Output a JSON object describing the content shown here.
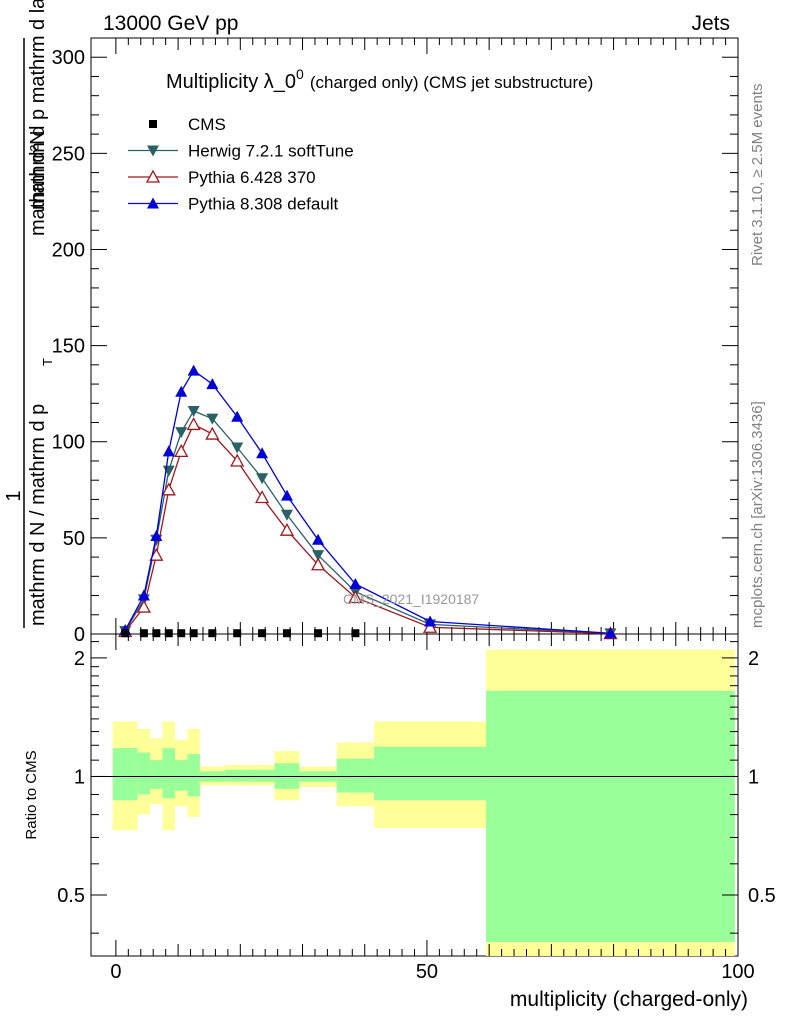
{
  "header": {
    "energy_label": "13000 GeV pp",
    "category_label": "Jets"
  },
  "side_labels": {
    "rivet": "Rivet 3.1.10, ≥ 2.5M events",
    "mcplots": "mcplots.cern.ch [arXiv:1306.3436]"
  },
  "chart_data": {
    "type": "line",
    "title_main": "Multiplicity λ_0",
    "title_sup": "0",
    "title_sub": "(charged only) (CMS jet substructure)",
    "watermark": "CMS_2021_I1920187",
    "ylabel_top": "1",
    "ylabel_denominator": "mathrm d N / mathrm d p",
    "ylabel_numerator": "mathrm d²N",
    "ylabel_num_rest": "mathrm d p  mathrm d lambda",
    "ylabel_sub": "T",
    "xlabel": "multiplicity (charged-only)",
    "ratio_ylabel": "Ratio to CMS",
    "xlim": [
      -4,
      100
    ],
    "ylim": [
      0,
      310
    ],
    "ratio_ylim": [
      0.35,
      2.3
    ],
    "x_ticks": [
      0,
      50,
      100
    ],
    "y_ticks": [
      0,
      50,
      100,
      150,
      200,
      250,
      300
    ],
    "ratio_ticks": [
      0.5,
      1,
      2
    ],
    "legend": [
      {
        "name": "CMS",
        "marker": "square-filled",
        "color": "#000000"
      },
      {
        "name": "Herwig 7.2.1 softTune",
        "marker": "triangle-down-filled",
        "color": "#2a6164"
      },
      {
        "name": "Pythia 6.428 370",
        "marker": "triangle-up-open",
        "color": "#a0161e"
      },
      {
        "name": "Pythia 8.308 default",
        "marker": "triangle-up-filled",
        "color": "#0000d8"
      }
    ],
    "cms": {
      "x": [
        1.5,
        4.5,
        6.5,
        8.5,
        10.5,
        12.5,
        15.5,
        19.5,
        23.5,
        27.5,
        32.5,
        38.5
      ],
      "y": [
        0.4,
        0.4,
        0.4,
        0.4,
        0.4,
        0.4,
        0.4,
        0.4,
        0.4,
        0.4,
        0.4,
        0.4
      ]
    },
    "series": [
      {
        "name": "Herwig 7.2.1 softTune",
        "x": [
          1.5,
          4.5,
          6.5,
          8.5,
          10.5,
          12.5,
          15.5,
          19.5,
          23.5,
          27.5,
          32.5,
          38.5,
          50.5,
          79.5
        ],
        "y": [
          1.5,
          18,
          49,
          85,
          105,
          116,
          112,
          97,
          81,
          62,
          41,
          22,
          5,
          0.3
        ]
      },
      {
        "name": "Pythia 6.428 370",
        "x": [
          1.5,
          4.5,
          6.5,
          8.5,
          10.5,
          12.5,
          15.5,
          19.5,
          23.5,
          27.5,
          32.5,
          38.5,
          50.5,
          79.5
        ],
        "y": [
          1.3,
          14,
          41,
          75,
          95,
          109,
          104,
          90,
          71,
          54,
          36,
          19,
          3.5,
          0.2
        ]
      },
      {
        "name": "Pythia 8.308 default",
        "x": [
          1.5,
          4.5,
          6.5,
          8.5,
          10.5,
          12.5,
          15.5,
          19.5,
          23.5,
          27.5,
          32.5,
          38.5,
          50.5,
          79.5
        ],
        "y": [
          2,
          20,
          51,
          95,
          126,
          137,
          130,
          113,
          94,
          72,
          49,
          26,
          6.5,
          0.4
        ]
      }
    ],
    "ratio_bands": [
      {
        "x0": -0.5,
        "x1": 3.5,
        "yellow": [
          0.73,
          1.38
        ],
        "green": [
          0.87,
          1.18
        ]
      },
      {
        "x0": 3.5,
        "x1": 5.5,
        "yellow": [
          0.8,
          1.32
        ],
        "green": [
          0.9,
          1.15
        ]
      },
      {
        "x0": 5.5,
        "x1": 7.5,
        "yellow": [
          0.85,
          1.25
        ],
        "green": [
          0.93,
          1.1
        ]
      },
      {
        "x0": 7.5,
        "x1": 9.5,
        "yellow": [
          0.73,
          1.38
        ],
        "green": [
          0.88,
          1.18
        ]
      },
      {
        "x0": 9.5,
        "x1": 11.5,
        "yellow": [
          0.84,
          1.24
        ],
        "green": [
          0.92,
          1.1
        ]
      },
      {
        "x0": 11.5,
        "x1": 13.5,
        "yellow": [
          0.79,
          1.32
        ],
        "green": [
          0.89,
          1.14
        ]
      },
      {
        "x0": 13.5,
        "x1": 17.5,
        "yellow": [
          0.95,
          1.06
        ],
        "green": [
          0.97,
          1.03
        ]
      },
      {
        "x0": 17.5,
        "x1": 21.5,
        "yellow": [
          0.95,
          1.07
        ],
        "green": [
          0.97,
          1.04
        ]
      },
      {
        "x0": 21.5,
        "x1": 25.5,
        "yellow": [
          0.95,
          1.07
        ],
        "green": [
          0.97,
          1.04
        ]
      },
      {
        "x0": 25.5,
        "x1": 29.5,
        "yellow": [
          0.87,
          1.16
        ],
        "green": [
          0.93,
          1.08
        ]
      },
      {
        "x0": 29.5,
        "x1": 35.5,
        "yellow": [
          0.94,
          1.06
        ],
        "green": [
          0.97,
          1.03
        ]
      },
      {
        "x0": 35.5,
        "x1": 41.5,
        "yellow": [
          0.84,
          1.22
        ],
        "green": [
          0.91,
          1.11
        ]
      },
      {
        "x0": 41.5,
        "x1": 59.5,
        "yellow": [
          0.74,
          1.38
        ],
        "green": [
          0.87,
          1.19
        ]
      },
      {
        "x0": 59.5,
        "x1": 99.5,
        "yellow": [
          0.35,
          2.1
        ],
        "green": [
          0.38,
          1.65
        ]
      }
    ]
  }
}
